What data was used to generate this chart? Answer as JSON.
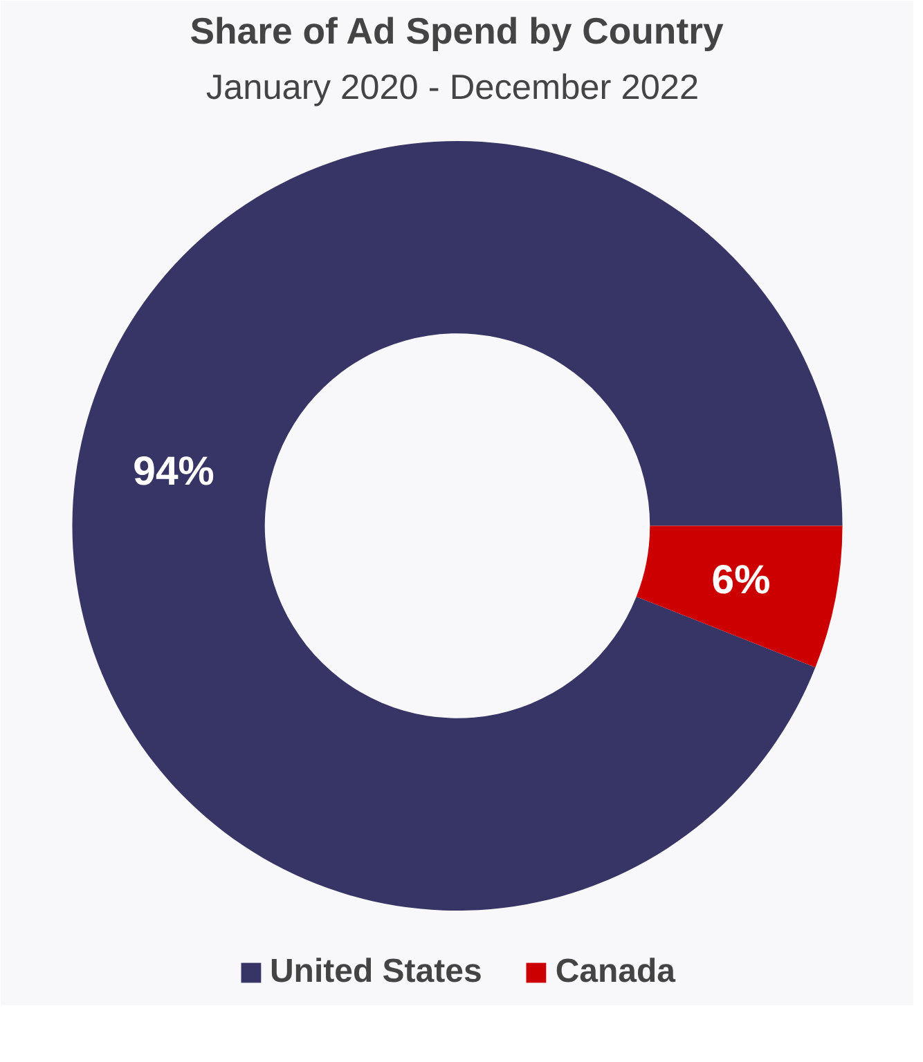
{
  "chart_data": {
    "type": "donut",
    "title": "Share of Ad Spend by Country",
    "subtitle": "January 2020  - December 2022",
    "categories": [
      "United States",
      "Canada"
    ],
    "values": [
      94,
      6
    ],
    "colors": [
      "#373565",
      "#cc0000"
    ],
    "value_labels": [
      "94%",
      "6%"
    ],
    "legend": "bottom"
  }
}
